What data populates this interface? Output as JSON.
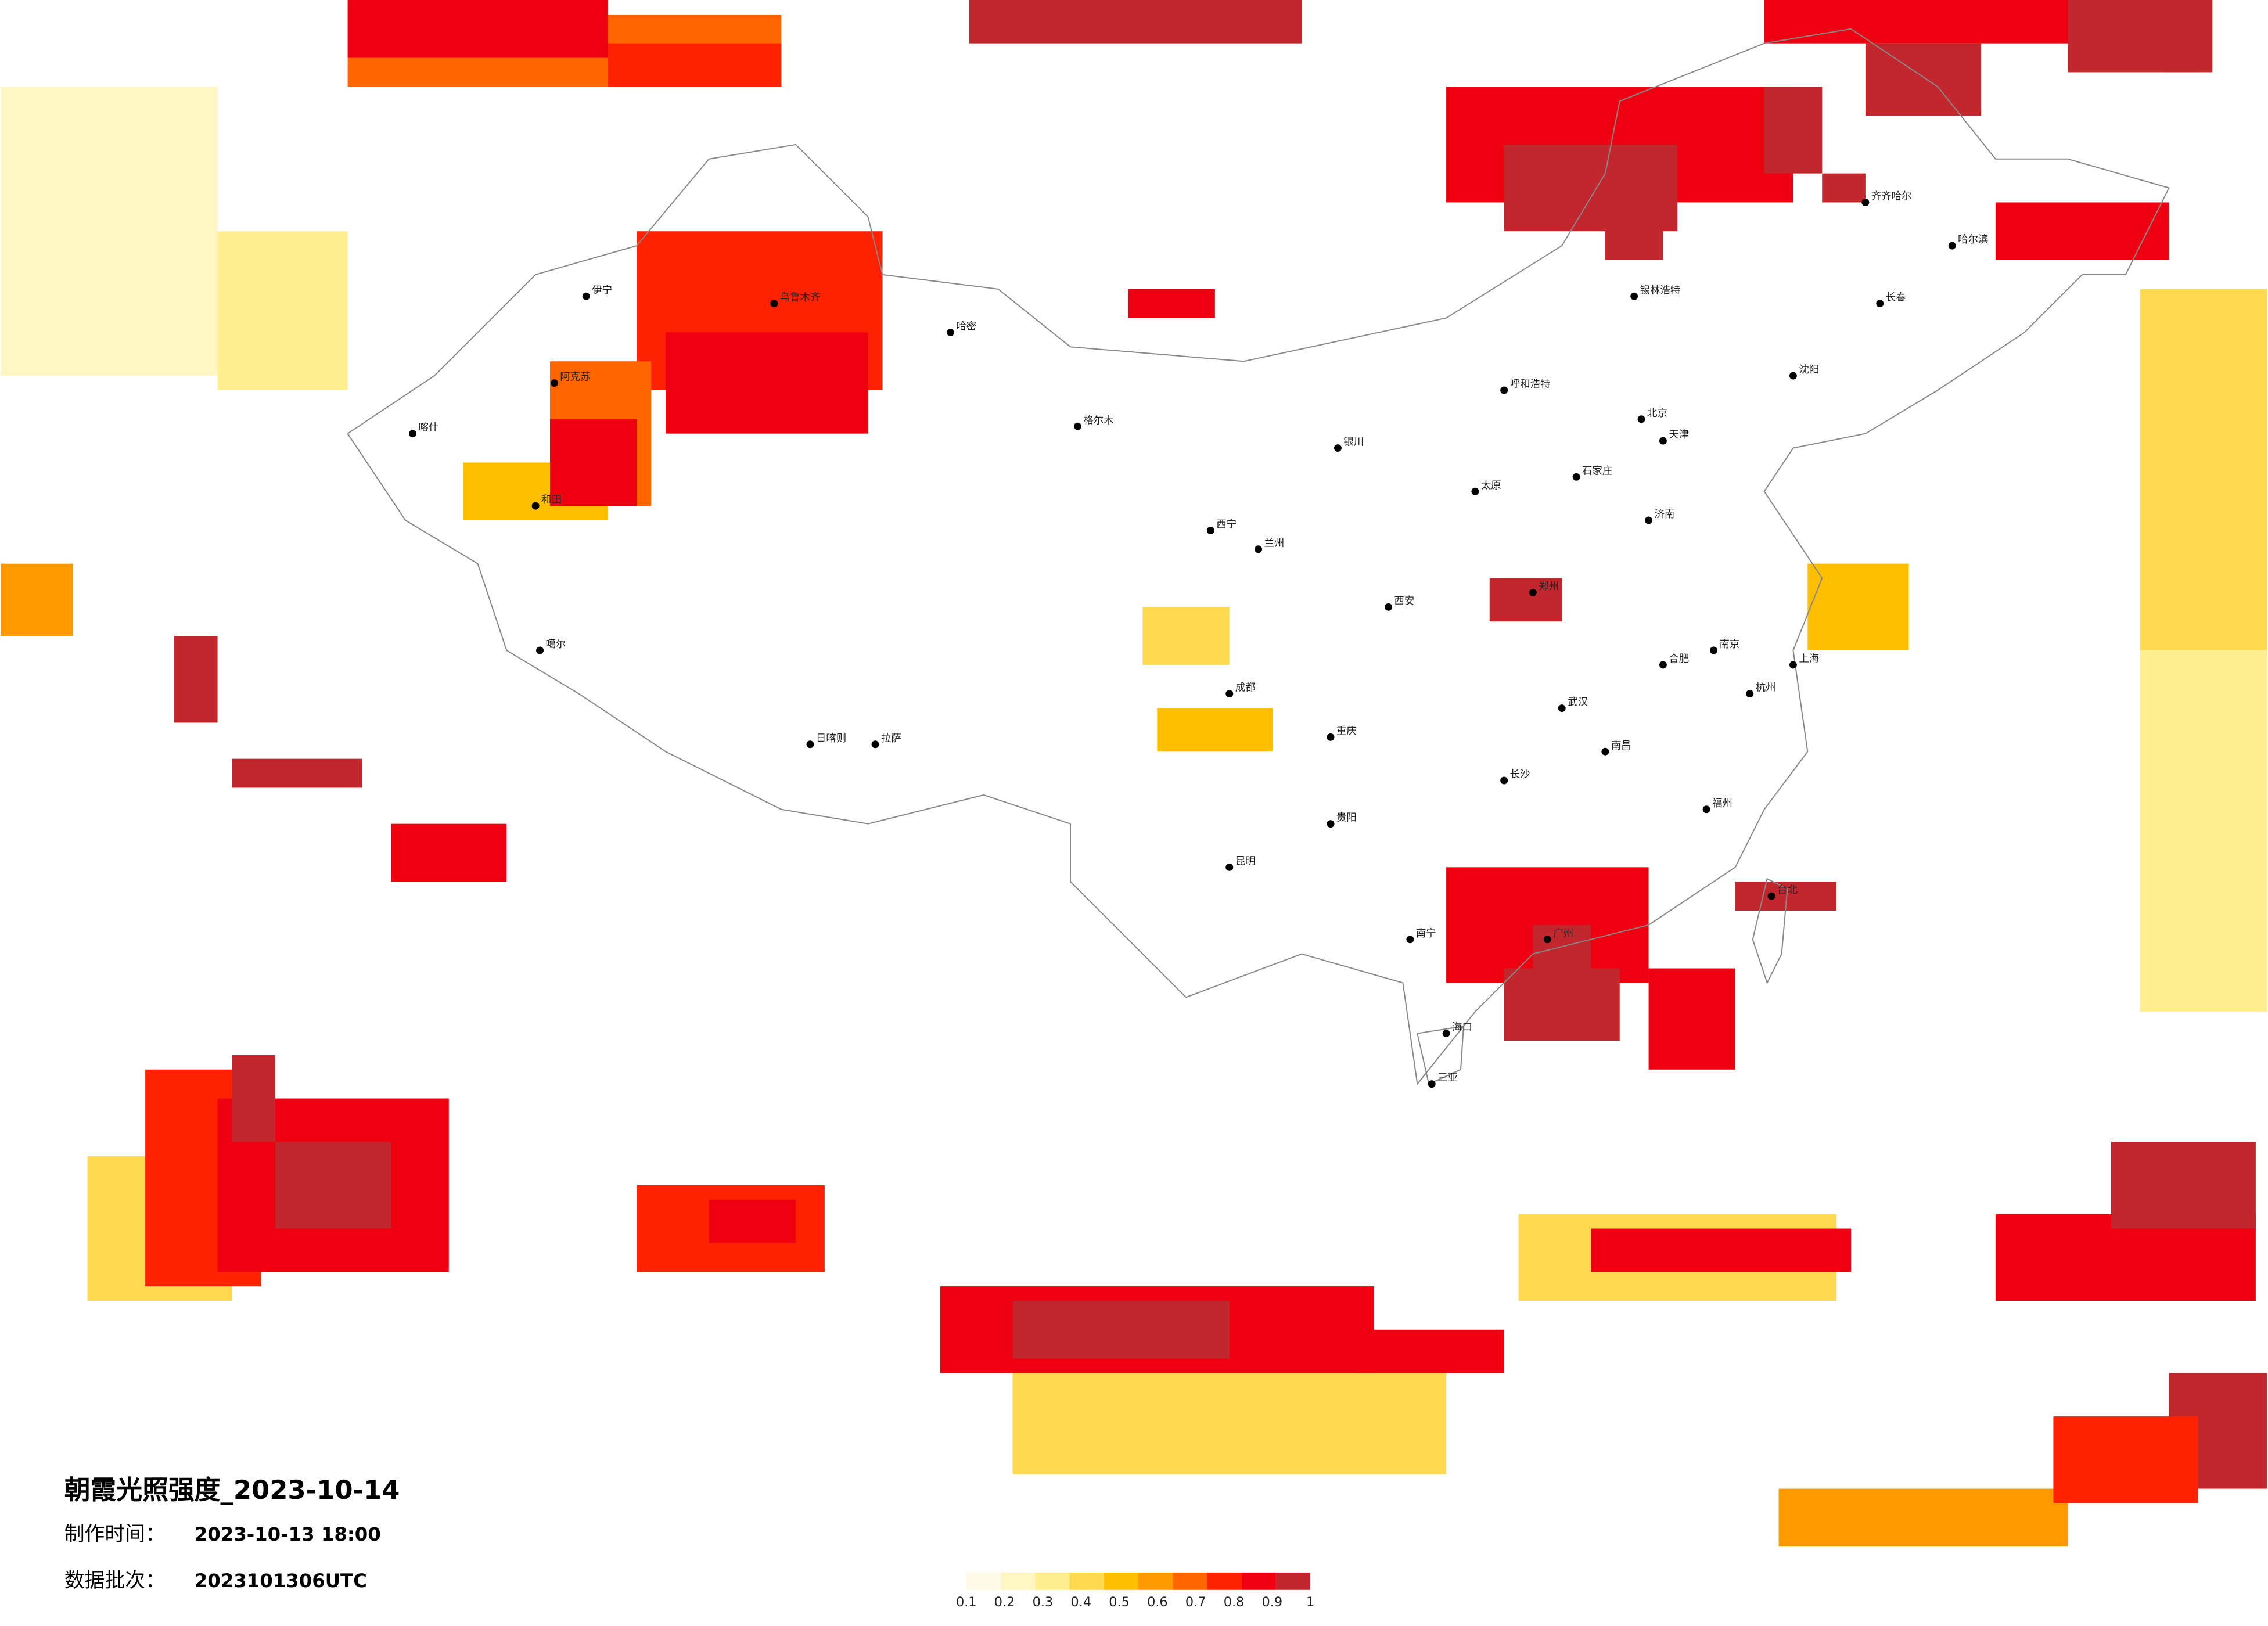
{
  "header": {
    "title": "朝霞光照强度_2023-10-14",
    "made_label": "制作时间：",
    "made_time": "2023-10-13 18:00",
    "batch_label": "数据批次：",
    "batch": "2023101306UTC"
  },
  "colorbar": {
    "ticks": [
      0.1,
      0.2,
      0.3,
      0.4,
      0.5,
      0.6,
      0.7,
      0.8,
      0.9,
      1
    ],
    "colors": [
      "#fffbe8",
      "#fff6c4",
      "#ffee8e",
      "#ffd94f",
      "#ffbf00",
      "#ff9900",
      "#ff6600",
      "#ff2200",
      "#ee0011",
      "#c1272d"
    ]
  },
  "cities": [
    "乌鲁木齐",
    "哈密",
    "喀什",
    "伊宁",
    "和田",
    "阿克苏",
    "拉萨",
    "日喀则",
    "西宁",
    "兰州",
    "成都",
    "重庆",
    "昆明",
    "贵阳",
    "南宁",
    "海口",
    "三亚",
    "广州",
    "福州",
    "台北",
    "杭州",
    "上海",
    "南京",
    "合肥",
    "武汉",
    "长沙",
    "南昌",
    "郑州",
    "西安",
    "太原",
    "石家庄",
    "北京",
    "天津",
    "济南",
    "沈阳",
    "长春",
    "哈尔滨",
    "呼和浩特",
    "银川",
    "锡林浩特",
    "齐齐哈尔",
    "格尔木",
    "噶尔"
  ]
}
